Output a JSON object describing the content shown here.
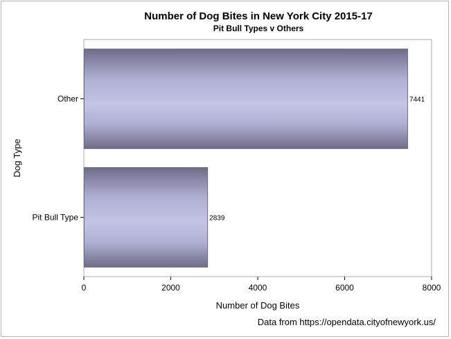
{
  "chart_data": {
    "type": "bar",
    "orientation": "horizontal",
    "title": "Number of Dog Bites in New York City 2015-17",
    "subtitle": "Pit Bull Types v Others",
    "xlabel": "Number of Dog Bites",
    "ylabel": "Dog Type",
    "categories": [
      "Other",
      "Pit Bull Type"
    ],
    "values": [
      7441,
      2839
    ],
    "data_labels": [
      "7441",
      "2839"
    ],
    "xlim": [
      0,
      8000
    ],
    "xticks": [
      0,
      2000,
      4000,
      6000,
      8000
    ],
    "xtick_labels": [
      "0",
      "2000",
      "4000",
      "6000",
      "8000"
    ],
    "grid": false,
    "bar_color": "#c0c0e0",
    "bar_edge_color": "#6a6880",
    "footnote": "Data from https://opendata.cityofnewyork.us/"
  }
}
